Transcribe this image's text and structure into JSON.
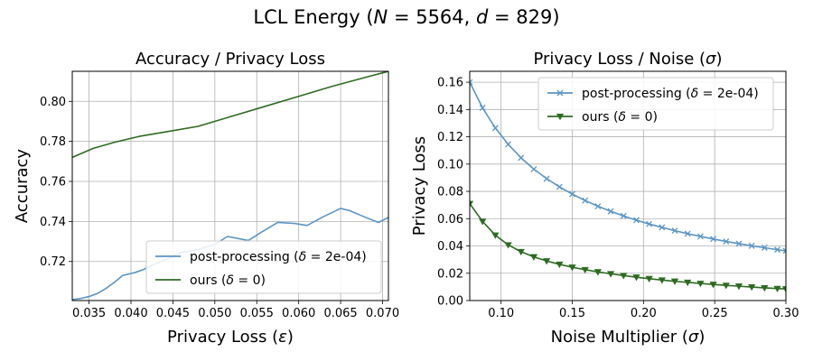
{
  "figure": {
    "title": "LCL Energy (N = 5564, d = 829)"
  },
  "chart_data": [
    {
      "type": "line",
      "title": "Accuracy / Privacy Loss",
      "xlabel": "Privacy Loss (ε)",
      "ylabel": "Accuracy",
      "xlim": [
        0.033,
        0.0707
      ],
      "ylim": [
        0.7005,
        0.815
      ],
      "xticks": [
        0.035,
        0.04,
        0.045,
        0.05,
        0.055,
        0.06,
        0.065,
        0.07
      ],
      "xtick_labels": [
        "0.035",
        "0.040",
        "0.045",
        "0.050",
        "0.055",
        "0.060",
        "0.065",
        "0.070"
      ],
      "yticks": [
        0.72,
        0.74,
        0.76,
        0.78,
        0.8
      ],
      "ytick_labels": [
        "0.72",
        "0.74",
        "0.76",
        "0.78",
        "0.80"
      ],
      "grid": true,
      "legend_position": "lower-right",
      "series": [
        {
          "name": "post-processing (δ = 2e-04)",
          "color": "#5b95c5",
          "marker": "none",
          "x": [
            0.033,
            0.034,
            0.035,
            0.036,
            0.037,
            0.038,
            0.039,
            0.0405,
            0.0415,
            0.043,
            0.0445,
            0.046,
            0.048,
            0.05,
            0.0515,
            0.054,
            0.0555,
            0.0575,
            0.0595,
            0.061,
            0.063,
            0.065,
            0.066,
            0.068,
            0.0695,
            0.0707
          ],
          "y": [
            0.701,
            0.7015,
            0.7025,
            0.704,
            0.7065,
            0.7095,
            0.713,
            0.7145,
            0.716,
            0.719,
            0.7215,
            0.7245,
            0.726,
            0.7285,
            0.7325,
            0.7305,
            0.7345,
            0.7395,
            0.739,
            0.738,
            0.7425,
            0.7465,
            0.7455,
            0.742,
            0.7395,
            0.742
          ]
        },
        {
          "name": "ours (δ = 0)",
          "color": "#2e6b22",
          "marker": "none",
          "x": [
            0.033,
            0.0355,
            0.038,
            0.041,
            0.0445,
            0.048,
            0.052,
            0.056,
            0.06,
            0.064,
            0.068,
            0.0707
          ],
          "y": [
            0.772,
            0.7765,
            0.7795,
            0.7825,
            0.785,
            0.7875,
            0.7925,
            0.7975,
            0.8025,
            0.8075,
            0.812,
            0.815
          ]
        }
      ]
    },
    {
      "type": "line",
      "title": "Privacy Loss / Noise (σ)",
      "xlabel": "Noise Multiplier (σ)",
      "ylabel": "Privacy Loss",
      "xlim": [
        0.078,
        0.3
      ],
      "ylim": [
        0.0,
        0.168
      ],
      "xticks": [
        0.1,
        0.15,
        0.2,
        0.25,
        0.3
      ],
      "xtick_labels": [
        "0.10",
        "0.15",
        "0.20",
        "0.25",
        "0.30"
      ],
      "yticks": [
        0.0,
        0.02,
        0.04,
        0.06,
        0.08,
        0.1,
        0.12,
        0.14,
        0.16
      ],
      "ytick_labels": [
        "0.00",
        "0.02",
        "0.04",
        "0.06",
        "0.08",
        "0.10",
        "0.12",
        "0.14",
        "0.16"
      ],
      "grid": true,
      "legend_position": "upper-right",
      "series": [
        {
          "name": "post-processing (δ = 2e-04)",
          "color": "#5b95c5",
          "marker": "x",
          "x": [
            0.078,
            0.087,
            0.096,
            0.105,
            0.114,
            0.123,
            0.132,
            0.141,
            0.15,
            0.159,
            0.168,
            0.177,
            0.186,
            0.195,
            0.204,
            0.213,
            0.222,
            0.231,
            0.24,
            0.249,
            0.258,
            0.267,
            0.276,
            0.285,
            0.294,
            0.3
          ],
          "y": [
            0.16,
            0.1412,
            0.1264,
            0.1145,
            0.1046,
            0.0963,
            0.0893,
            0.0833,
            0.078,
            0.0733,
            0.0691,
            0.0654,
            0.062,
            0.0589,
            0.0561,
            0.0536,
            0.0512,
            0.049,
            0.047,
            0.0451,
            0.0433,
            0.0417,
            0.0401,
            0.0387,
            0.0373,
            0.0364
          ]
        },
        {
          "name": "ours (δ = 0)",
          "color": "#2e6b22",
          "marker": "triangle-down",
          "x": [
            0.078,
            0.087,
            0.096,
            0.105,
            0.114,
            0.123,
            0.132,
            0.141,
            0.15,
            0.159,
            0.168,
            0.177,
            0.186,
            0.195,
            0.204,
            0.213,
            0.222,
            0.231,
            0.24,
            0.249,
            0.258,
            0.267,
            0.276,
            0.285,
            0.294,
            0.3
          ],
          "y": [
            0.071,
            0.058,
            0.0479,
            0.0408,
            0.0358,
            0.032,
            0.029,
            0.0265,
            0.0244,
            0.0226,
            0.021,
            0.0196,
            0.0183,
            0.0171,
            0.016,
            0.015,
            0.0141,
            0.0133,
            0.0125,
            0.0118,
            0.0111,
            0.0105,
            0.0099,
            0.0093,
            0.0088,
            0.0085
          ]
        }
      ]
    }
  ]
}
